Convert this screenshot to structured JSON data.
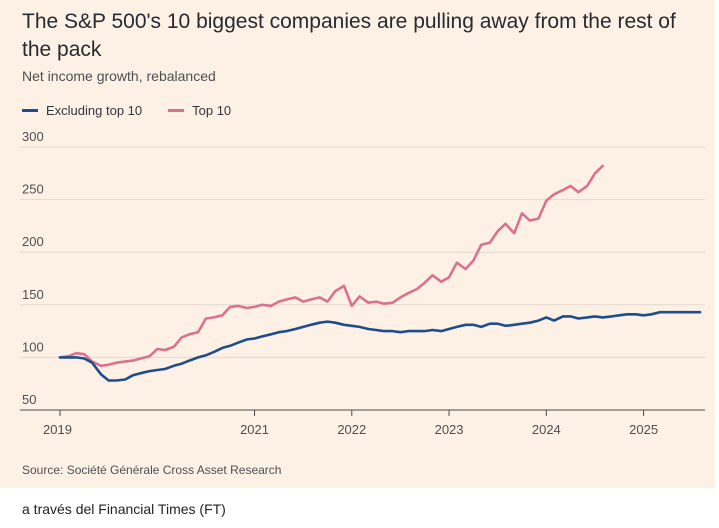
{
  "page": {
    "title": "The S&P 500's 10 biggest companies are pulling away from the rest of the pack",
    "subtitle": "Net income growth, rebalanced",
    "source": "Source: Société Générale Cross Asset Research",
    "caption": "a través del Financial Times (FT)"
  },
  "colors": {
    "background": "#fdf1e5",
    "excluding_top10": "#1f4d8c",
    "top10": "#d9718f",
    "grid": "#e3d9cf",
    "baseline": "#4a4a4a"
  },
  "chart_data": {
    "type": "line",
    "title": "The S&P 500's 10 biggest companies are pulling away from the rest of the pack",
    "subtitle": "Net income growth, rebalanced",
    "xlabel": "",
    "ylabel": "",
    "ylim": [
      50,
      300
    ],
    "xlim": [
      2019.0,
      2025.58
    ],
    "yticks": [
      50,
      100,
      150,
      200,
      250,
      300
    ],
    "xticks": [
      2019,
      2021,
      2022,
      2023,
      2024,
      2025
    ],
    "grid": true,
    "legend_position": "top-left",
    "series": [
      {
        "name": "Excluding top 10",
        "color": "#1f4d8c",
        "points": [
          [
            2019.0,
            100
          ],
          [
            2019.08,
            100
          ],
          [
            2019.17,
            100
          ],
          [
            2019.25,
            99
          ],
          [
            2019.33,
            95
          ],
          [
            2019.42,
            84
          ],
          [
            2019.5,
            78
          ],
          [
            2019.58,
            78
          ],
          [
            2019.67,
            79
          ],
          [
            2019.75,
            83
          ],
          [
            2019.83,
            85
          ],
          [
            2019.92,
            87
          ],
          [
            2020.0,
            88
          ],
          [
            2020.08,
            89
          ],
          [
            2020.17,
            92
          ],
          [
            2020.25,
            94
          ],
          [
            2020.33,
            97
          ],
          [
            2020.42,
            100
          ],
          [
            2020.5,
            102
          ],
          [
            2020.58,
            105
          ],
          [
            2020.67,
            109
          ],
          [
            2020.75,
            111
          ],
          [
            2020.83,
            114
          ],
          [
            2020.92,
            117
          ],
          [
            2021.0,
            118
          ],
          [
            2021.08,
            120
          ],
          [
            2021.17,
            122
          ],
          [
            2021.25,
            124
          ],
          [
            2021.33,
            125
          ],
          [
            2021.42,
            127
          ],
          [
            2021.5,
            129
          ],
          [
            2021.58,
            131
          ],
          [
            2021.67,
            133
          ],
          [
            2021.75,
            134
          ],
          [
            2021.83,
            133
          ],
          [
            2021.92,
            131
          ],
          [
            2022.0,
            130
          ],
          [
            2022.08,
            129
          ],
          [
            2022.17,
            127
          ],
          [
            2022.25,
            126
          ],
          [
            2022.33,
            125
          ],
          [
            2022.42,
            125
          ],
          [
            2022.5,
            124
          ],
          [
            2022.58,
            125
          ],
          [
            2022.67,
            125
          ],
          [
            2022.75,
            125
          ],
          [
            2022.83,
            126
          ],
          [
            2022.92,
            125
          ],
          [
            2023.0,
            127
          ],
          [
            2023.08,
            129
          ],
          [
            2023.17,
            131
          ],
          [
            2023.25,
            131
          ],
          [
            2023.33,
            129
          ],
          [
            2023.42,
            132
          ],
          [
            2023.5,
            132
          ],
          [
            2023.58,
            130
          ],
          [
            2023.67,
            131
          ],
          [
            2023.75,
            132
          ],
          [
            2023.83,
            133
          ],
          [
            2023.92,
            135
          ],
          [
            2024.0,
            138
          ],
          [
            2024.08,
            135
          ],
          [
            2024.17,
            139
          ],
          [
            2024.25,
            139
          ],
          [
            2024.33,
            137
          ],
          [
            2024.42,
            138
          ],
          [
            2024.5,
            139
          ],
          [
            2024.58,
            138
          ],
          [
            2024.67,
            139
          ],
          [
            2024.75,
            140
          ],
          [
            2024.83,
            141
          ],
          [
            2024.92,
            141
          ],
          [
            2025.0,
            140
          ],
          [
            2025.08,
            141
          ],
          [
            2025.17,
            143
          ],
          [
            2025.58,
            143
          ]
        ]
      },
      {
        "name": "Top 10",
        "color": "#d9718f",
        "points": [
          [
            2019.0,
            100
          ],
          [
            2019.08,
            101
          ],
          [
            2019.17,
            104
          ],
          [
            2019.25,
            103
          ],
          [
            2019.33,
            96
          ],
          [
            2019.42,
            92
          ],
          [
            2019.5,
            93
          ],
          [
            2019.58,
            95
          ],
          [
            2019.67,
            96
          ],
          [
            2019.75,
            97
          ],
          [
            2019.83,
            99
          ],
          [
            2019.92,
            101
          ],
          [
            2020.0,
            108
          ],
          [
            2020.08,
            107
          ],
          [
            2020.17,
            110
          ],
          [
            2020.25,
            119
          ],
          [
            2020.33,
            122
          ],
          [
            2020.42,
            124
          ],
          [
            2020.5,
            137
          ],
          [
            2020.58,
            138
          ],
          [
            2020.67,
            140
          ],
          [
            2020.75,
            148
          ],
          [
            2020.83,
            149
          ],
          [
            2020.92,
            147
          ],
          [
            2021.0,
            148
          ],
          [
            2021.08,
            150
          ],
          [
            2021.17,
            149
          ],
          [
            2021.25,
            153
          ],
          [
            2021.33,
            155
          ],
          [
            2021.42,
            157
          ],
          [
            2021.5,
            153
          ],
          [
            2021.58,
            155
          ],
          [
            2021.67,
            157
          ],
          [
            2021.75,
            153
          ],
          [
            2021.83,
            163
          ],
          [
            2021.92,
            168
          ],
          [
            2022.0,
            149
          ],
          [
            2022.08,
            158
          ],
          [
            2022.17,
            152
          ],
          [
            2022.25,
            153
          ],
          [
            2022.33,
            151
          ],
          [
            2022.42,
            152
          ],
          [
            2022.5,
            157
          ],
          [
            2022.58,
            161
          ],
          [
            2022.67,
            165
          ],
          [
            2022.75,
            171
          ],
          [
            2022.83,
            178
          ],
          [
            2022.92,
            172
          ],
          [
            2023.0,
            176
          ],
          [
            2023.08,
            190
          ],
          [
            2023.17,
            184
          ],
          [
            2023.25,
            192
          ],
          [
            2023.33,
            207
          ],
          [
            2023.42,
            209
          ],
          [
            2023.5,
            220
          ],
          [
            2023.58,
            227
          ],
          [
            2023.67,
            218
          ],
          [
            2023.75,
            237
          ],
          [
            2023.83,
            230
          ],
          [
            2023.92,
            232
          ],
          [
            2024.0,
            249
          ],
          [
            2024.08,
            255
          ],
          [
            2024.17,
            259
          ],
          [
            2024.25,
            263
          ],
          [
            2024.33,
            257
          ],
          [
            2024.42,
            263
          ],
          [
            2024.5,
            275
          ],
          [
            2024.58,
            282
          ]
        ]
      }
    ]
  }
}
